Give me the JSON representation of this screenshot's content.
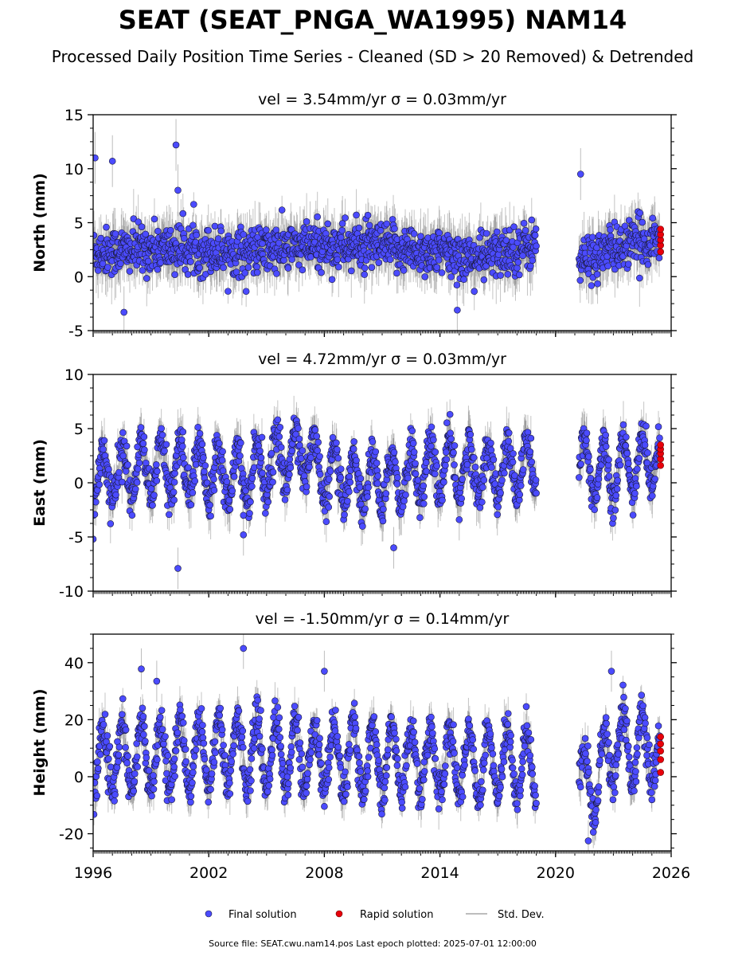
{
  "figure": {
    "title": "SEAT (SEAT_PNGA_WA1995) NAM14",
    "subtitle": "Processed Daily Position Time Series - Cleaned (SD > 20 Removed) & Detrended",
    "source_note": "Source file: SEAT.cwu.nam14.pos  Last epoch plotted: 2025-07-01 12:00:00"
  },
  "legend": {
    "final": "Final solution",
    "rapid": "Rapid solution",
    "stddev": "Std. Dev."
  },
  "colors": {
    "final": "#4b4bff",
    "final_edge": "#1a1a3a",
    "rapid": "#e8000b",
    "stddev": "#bdbdbd"
  },
  "chart_data": [
    {
      "type": "scatter",
      "panel": "north",
      "title": "vel = 3.54mm/yr   σ = 0.03mm/yr",
      "ylabel": "North (mm)",
      "xlim": [
        1996,
        2026
      ],
      "ylim": [
        -5,
        15
      ],
      "yticks": [
        -5,
        0,
        5,
        10,
        15
      ],
      "data_gap": [
        2019.0,
        2021.2
      ],
      "series": [
        {
          "name": "Final solution",
          "x_range": [
            1996.0,
            2025.4
          ],
          "envelope_center": [
            [
              1996,
              2.3
            ],
            [
              2000,
              2.6
            ],
            [
              2004,
              2.3
            ],
            [
              2008,
              2.9
            ],
            [
              2012,
              2.6
            ],
            [
              2016,
              1.7
            ],
            [
              2019,
              3.0
            ],
            [
              2021.2,
              1.3
            ],
            [
              2023,
              2.6
            ],
            [
              2025.4,
              3.6
            ]
          ],
          "envelope_halfwidth": 2.0,
          "notable_points": [
            [
              1996.1,
              11.0
            ],
            [
              1997.0,
              10.7
            ],
            [
              2000.3,
              12.2
            ],
            [
              2000.4,
              8.0
            ],
            [
              2021.3,
              9.5
            ],
            [
              1997.6,
              -3.3
            ],
            [
              2014.9,
              -3.1
            ]
          ]
        },
        {
          "name": "Rapid solution",
          "x": [
            2025.45,
            2025.45,
            2025.45,
            2025.45,
            2025.45
          ],
          "y": [
            2.3,
            2.9,
            3.4,
            3.9,
            4.4
          ]
        }
      ]
    },
    {
      "type": "scatter",
      "panel": "east",
      "title": "vel = 4.72mm/yr   σ = 0.03mm/yr",
      "ylabel": "East (mm)",
      "xlim": [
        1996,
        2026
      ],
      "ylim": [
        -10,
        10
      ],
      "yticks": [
        -10,
        -5,
        0,
        5,
        10
      ],
      "data_gap": [
        2019.0,
        2021.2
      ],
      "series": [
        {
          "name": "Final solution",
          "x_range": [
            1996.0,
            2025.4
          ],
          "seasonal_amplitude": 2.5,
          "envelope_center": [
            [
              1996,
              0.5
            ],
            [
              2000,
              1.5
            ],
            [
              2004,
              0.8
            ],
            [
              2007,
              3.0
            ],
            [
              2008,
              0.5
            ],
            [
              2011,
              0.0
            ],
            [
              2014,
              1.5
            ],
            [
              2017,
              1.0
            ],
            [
              2019,
              1.5
            ],
            [
              2021.2,
              1.5
            ],
            [
              2023,
              1.0
            ],
            [
              2025.4,
              2.5
            ]
          ],
          "envelope_halfwidth": 1.6,
          "notable_points": [
            [
              1996.0,
              -5.2
            ],
            [
              2000.4,
              -7.9
            ],
            [
              2003.8,
              -3.0
            ],
            [
              2003.8,
              -4.8
            ],
            [
              2011.6,
              -6.0
            ],
            [
              2015.0,
              -3.4
            ]
          ]
        },
        {
          "name": "Rapid solution",
          "x": [
            2025.45,
            2025.45,
            2025.45,
            2025.45,
            2025.45
          ],
          "y": [
            1.6,
            2.2,
            2.7,
            3.1,
            3.5
          ]
        }
      ]
    },
    {
      "type": "scatter",
      "panel": "height",
      "title": "vel = -1.50mm/yr   σ = 0.14mm/yr",
      "ylabel": "Height (mm)",
      "xlim": [
        1996,
        2026
      ],
      "ylim": [
        -26,
        50
      ],
      "yticks": [
        -20,
        0,
        20,
        40
      ],
      "data_gap": [
        2019.0,
        2021.2
      ],
      "series": [
        {
          "name": "Final solution",
          "x_range": [
            1996.0,
            2025.4
          ],
          "seasonal_amplitude": 12,
          "envelope_center": [
            [
              1996,
              5
            ],
            [
              2000,
              8
            ],
            [
              2004,
              9
            ],
            [
              2008,
              7
            ],
            [
              2012,
              6
            ],
            [
              2016,
              5
            ],
            [
              2019,
              4
            ],
            [
              2021.2,
              0
            ],
            [
              2022,
              -3
            ],
            [
              2023,
              12
            ],
            [
              2025.4,
              8
            ]
          ],
          "envelope_halfwidth": 6,
          "notable_points": [
            [
              2003.8,
              45.0
            ],
            [
              1998.5,
              37.8
            ],
            [
              2008.0,
              37.0
            ],
            [
              1999.3,
              33.5
            ],
            [
              2022.9,
              37.0
            ],
            [
              2021.7,
              -22.5
            ]
          ]
        },
        {
          "name": "Rapid solution",
          "x": [
            2025.45,
            2025.45,
            2025.45,
            2025.45,
            2025.45
          ],
          "y": [
            1.5,
            6.0,
            9.0,
            11.5,
            14.0
          ]
        }
      ]
    }
  ],
  "xaxis": {
    "ticks": [
      1996,
      2002,
      2008,
      2014,
      2020,
      2026
    ]
  }
}
